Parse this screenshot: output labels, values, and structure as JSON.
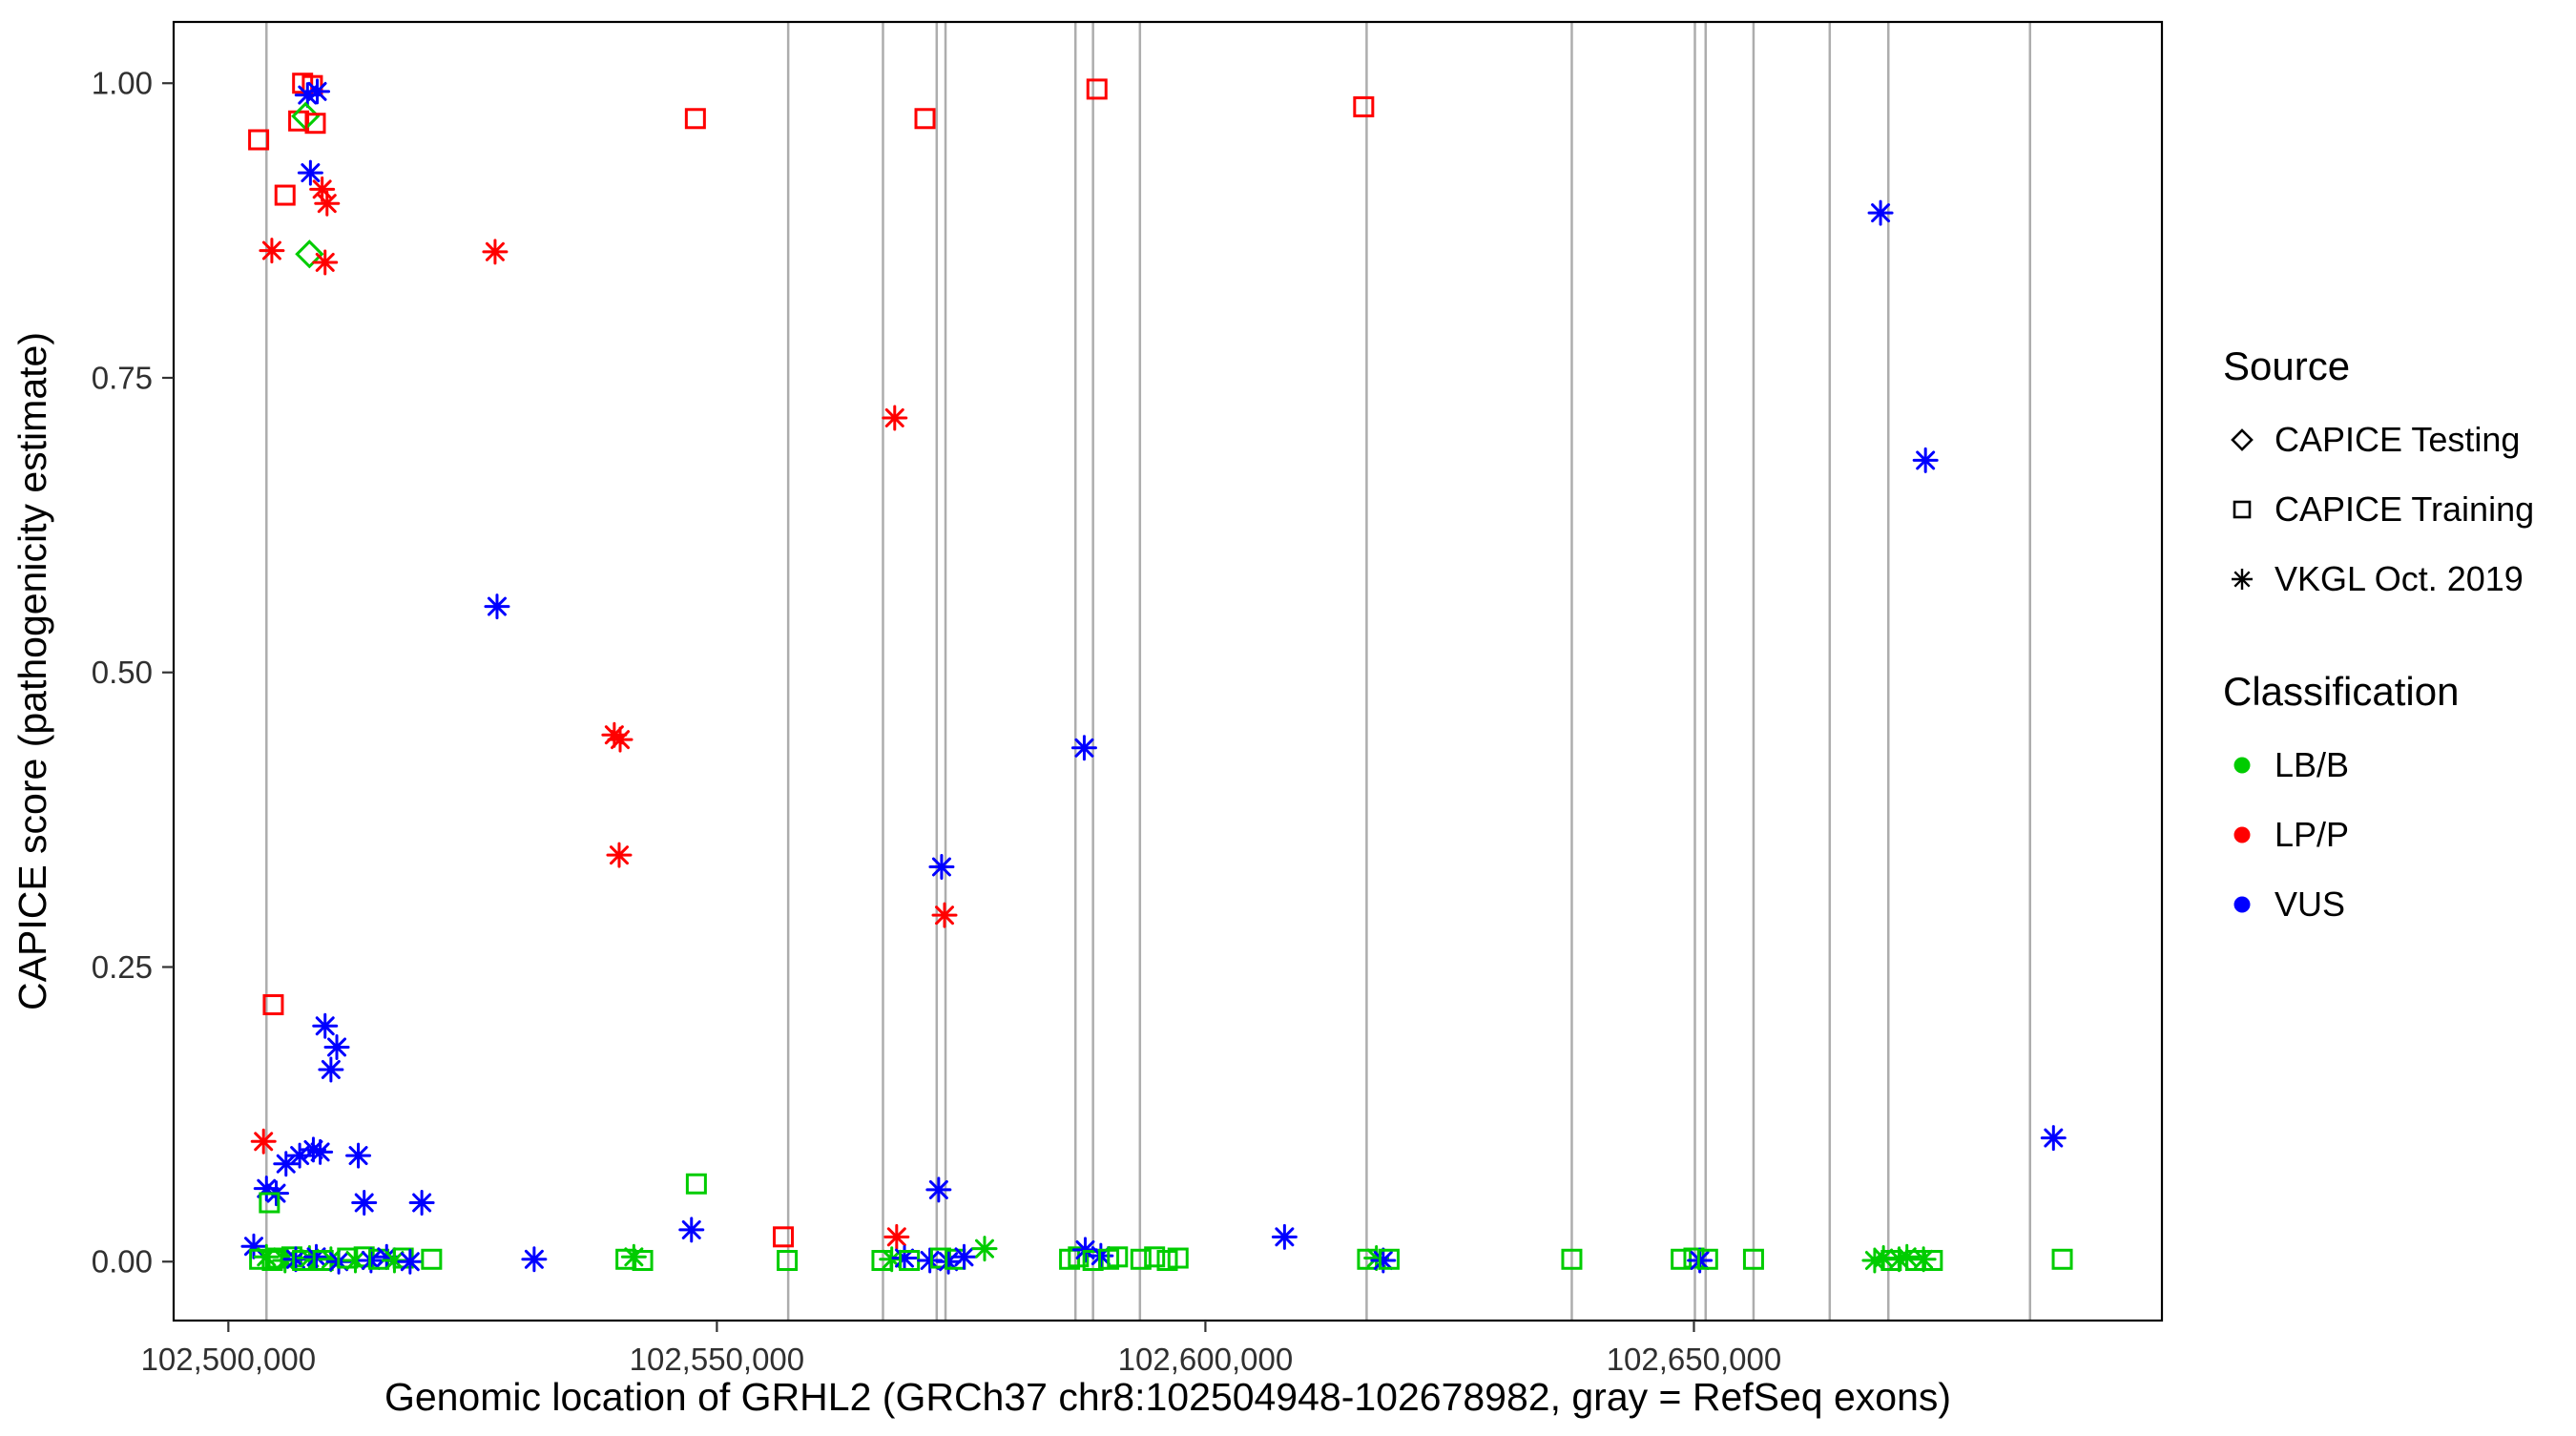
{
  "chart_data": {
    "type": "scatter",
    "title": "",
    "xlabel": "Genomic location of GRHL2 (GRCh37 chr8:102504948-102678982, gray = RefSeq exons)",
    "ylabel": "CAPICE score (pathogenicity estimate)",
    "xlim": [
      102494400,
      102697900
    ],
    "ylim": [
      -0.05,
      1.052
    ],
    "grid": false,
    "x_ticks": [
      {
        "v": 102500000,
        "label": "102,500,000"
      },
      {
        "v": 102550000,
        "label": "102,550,000"
      },
      {
        "v": 102600000,
        "label": "102,600,000"
      },
      {
        "v": 102650000,
        "label": "102,650,000"
      }
    ],
    "y_ticks": [
      {
        "v": 0.0,
        "label": "0.00"
      },
      {
        "v": 0.25,
        "label": "0.25"
      },
      {
        "v": 0.5,
        "label": "0.50"
      },
      {
        "v": 0.75,
        "label": "0.75"
      },
      {
        "v": 1.0,
        "label": "1.00"
      }
    ],
    "exon_color": "#ADADAD",
    "exon_lines": [
      102503900,
      102557300,
      102567000,
      102572500,
      102573400,
      102586700,
      102588500,
      102593300,
      102616500,
      102637500,
      102650100,
      102651200,
      102656100,
      102663900,
      102669900,
      102684400
    ],
    "class_colors": {
      "LB/B": "#00CC00",
      "LP/P": "#FF0000",
      "VUS": "#0000FF"
    },
    "legend": {
      "source_title": "Source",
      "sources": [
        {
          "label": "CAPICE Testing",
          "shape": "diamond"
        },
        {
          "label": "CAPICE Training",
          "shape": "square"
        },
        {
          "label": "VKGL Oct. 2019",
          "shape": "asterisk"
        }
      ],
      "classification_title": "Classification",
      "classifications": [
        {
          "label": "LB/B",
          "color": "#00CC00"
        },
        {
          "label": "LP/P",
          "color": "#FF0000"
        },
        {
          "label": "VUS",
          "color": "#0000FF"
        }
      ]
    },
    "points_format": [
      "x",
      "y",
      "shape",
      "classification"
    ],
    "points": [
      [
        102503100,
        0.952,
        "square",
        "LP/P"
      ],
      [
        102504450,
        0.858,
        "asterisk",
        "LP/P"
      ],
      [
        102505800,
        0.905,
        "square",
        "LP/P"
      ],
      [
        102507200,
        0.968,
        "square",
        "LP/P"
      ],
      [
        102507600,
        1.0,
        "square",
        "LP/P"
      ],
      [
        102508600,
        0.998,
        "square",
        "LP/P"
      ],
      [
        102508100,
        0.99,
        "asterisk",
        "VUS"
      ],
      [
        102509100,
        0.993,
        "asterisk",
        "VUS"
      ],
      [
        102507900,
        0.972,
        "diamond",
        "LB/B"
      ],
      [
        102508900,
        0.966,
        "square",
        "LP/P"
      ],
      [
        102508400,
        0.924,
        "asterisk",
        "VUS"
      ],
      [
        102509600,
        0.91,
        "asterisk",
        "LP/P"
      ],
      [
        102510100,
        0.898,
        "asterisk",
        "LP/P"
      ],
      [
        102508300,
        0.855,
        "diamond",
        "LB/B"
      ],
      [
        102509900,
        0.848,
        "asterisk",
        "LP/P"
      ],
      [
        102504600,
        0.218,
        "square",
        "LP/P"
      ],
      [
        102503600,
        0.102,
        "asterisk",
        "LP/P"
      ],
      [
        102509900,
        0.2,
        "asterisk",
        "VUS"
      ],
      [
        102511100,
        0.182,
        "asterisk",
        "VUS"
      ],
      [
        102510500,
        0.163,
        "asterisk",
        "VUS"
      ],
      [
        102505900,
        0.083,
        "asterisk",
        "VUS"
      ],
      [
        102507300,
        0.09,
        "asterisk",
        "VUS"
      ],
      [
        102508700,
        0.095,
        "asterisk",
        "VUS"
      ],
      [
        102509400,
        0.093,
        "asterisk",
        "VUS"
      ],
      [
        102513300,
        0.09,
        "asterisk",
        "VUS"
      ],
      [
        102503900,
        0.062,
        "asterisk",
        "VUS"
      ],
      [
        102504900,
        0.058,
        "asterisk",
        "VUS"
      ],
      [
        102504200,
        0.05,
        "square",
        "LB/B"
      ],
      [
        102513900,
        0.05,
        "asterisk",
        "VUS"
      ],
      [
        102519800,
        0.05,
        "asterisk",
        "VUS"
      ],
      [
        102502600,
        0.013,
        "asterisk",
        "VUS"
      ],
      [
        102503200,
        0.002,
        "square",
        "LB/B"
      ],
      [
        102503900,
        0.004,
        "asterisk",
        "LB/B"
      ],
      [
        102504500,
        0.001,
        "square",
        "LB/B"
      ],
      [
        102505100,
        0.003,
        "square",
        "LB/B"
      ],
      [
        102505800,
        0.001,
        "asterisk",
        "LB/B"
      ],
      [
        102506500,
        0.004,
        "square",
        "LB/B"
      ],
      [
        102506900,
        0.002,
        "asterisk",
        "VUS"
      ],
      [
        102507600,
        0.001,
        "square",
        "LB/B"
      ],
      [
        102508300,
        0.003,
        "asterisk",
        "LB/B"
      ],
      [
        102509000,
        0.004,
        "asterisk",
        "VUS"
      ],
      [
        102509700,
        0.001,
        "square",
        "LB/B"
      ],
      [
        102510500,
        0.002,
        "asterisk",
        "LB/B"
      ],
      [
        102511300,
        0.0,
        "asterisk",
        "VUS"
      ],
      [
        102512200,
        0.003,
        "square",
        "LB/B"
      ],
      [
        102513000,
        0.001,
        "asterisk",
        "LB/B"
      ],
      [
        102513900,
        0.004,
        "square",
        "LB/B"
      ],
      [
        102514600,
        0.001,
        "asterisk",
        "VUS"
      ],
      [
        102515400,
        0.002,
        "square",
        "LB/B"
      ],
      [
        102516200,
        0.004,
        "asterisk",
        "VUS"
      ],
      [
        102517000,
        0.001,
        "asterisk",
        "LB/B"
      ],
      [
        102517900,
        0.003,
        "square",
        "LB/B"
      ],
      [
        102518600,
        0.0,
        "asterisk",
        "VUS"
      ],
      [
        102520800,
        0.002,
        "square",
        "LB/B"
      ],
      [
        102527300,
        0.857,
        "asterisk",
        "LP/P"
      ],
      [
        102527500,
        0.556,
        "asterisk",
        "VUS"
      ],
      [
        102531300,
        0.002,
        "asterisk",
        "VUS"
      ],
      [
        102539500,
        0.447,
        "asterisk",
        "LP/P"
      ],
      [
        102540100,
        0.443,
        "asterisk",
        "LP/P"
      ],
      [
        102540000,
        0.345,
        "asterisk",
        "LP/P"
      ],
      [
        102540700,
        0.002,
        "square",
        "LB/B"
      ],
      [
        102541500,
        0.004,
        "asterisk",
        "LB/B"
      ],
      [
        102542400,
        0.001,
        "square",
        "LB/B"
      ],
      [
        102547800,
        0.97,
        "square",
        "LP/P"
      ],
      [
        102547900,
        0.066,
        "square",
        "LB/B"
      ],
      [
        102547400,
        0.027,
        "asterisk",
        "VUS"
      ],
      [
        102556800,
        0.021,
        "square",
        "LP/P"
      ],
      [
        102557200,
        0.001,
        "square",
        "LB/B"
      ],
      [
        102568200,
        0.716,
        "asterisk",
        "LP/P"
      ],
      [
        102568400,
        0.021,
        "asterisk",
        "LP/P"
      ],
      [
        102566900,
        0.001,
        "square",
        "LB/B"
      ],
      [
        102567900,
        0.002,
        "asterisk",
        "LB/B"
      ],
      [
        102569200,
        0.003,
        "asterisk",
        "VUS"
      ],
      [
        102569700,
        0.001,
        "square",
        "LB/B"
      ],
      [
        102571300,
        0.97,
        "square",
        "LP/P"
      ],
      [
        102573000,
        0.335,
        "asterisk",
        "VUS"
      ],
      [
        102573300,
        0.294,
        "asterisk",
        "LP/P"
      ],
      [
        102572700,
        0.061,
        "asterisk",
        "VUS"
      ],
      [
        102571800,
        0.001,
        "asterisk",
        "VUS"
      ],
      [
        102572900,
        0.003,
        "square",
        "LB/B"
      ],
      [
        102573700,
        0.0,
        "asterisk",
        "VUS"
      ],
      [
        102574400,
        0.002,
        "square",
        "LB/B"
      ],
      [
        102575300,
        0.004,
        "asterisk",
        "VUS"
      ],
      [
        102577400,
        0.011,
        "asterisk",
        "LB/B"
      ],
      [
        102588900,
        0.995,
        "square",
        "LP/P"
      ],
      [
        102587600,
        0.436,
        "asterisk",
        "VUS"
      ],
      [
        102586100,
        0.002,
        "square",
        "LB/B"
      ],
      [
        102587000,
        0.004,
        "square",
        "LB/B"
      ],
      [
        102587700,
        0.01,
        "asterisk",
        "VUS"
      ],
      [
        102588500,
        0.001,
        "square",
        "LB/B"
      ],
      [
        102589300,
        0.005,
        "asterisk",
        "VUS"
      ],
      [
        102590100,
        0.002,
        "square",
        "LB/B"
      ],
      [
        102591000,
        0.004,
        "square",
        "LB/B"
      ],
      [
        102593400,
        0.002,
        "square",
        "LB/B"
      ],
      [
        102594800,
        0.004,
        "square",
        "LB/B"
      ],
      [
        102596100,
        0.001,
        "square",
        "LB/B"
      ],
      [
        102597200,
        0.003,
        "square",
        "LB/B"
      ],
      [
        102608100,
        0.021,
        "asterisk",
        "VUS"
      ],
      [
        102616200,
        0.98,
        "square",
        "LP/P"
      ],
      [
        102616600,
        0.002,
        "square",
        "LB/B"
      ],
      [
        102617500,
        0.003,
        "asterisk",
        "LB/B"
      ],
      [
        102618200,
        0.001,
        "asterisk",
        "VUS"
      ],
      [
        102618800,
        0.002,
        "square",
        "LB/B"
      ],
      [
        102637500,
        0.002,
        "square",
        "LB/B"
      ],
      [
        102648700,
        0.002,
        "square",
        "LB/B"
      ],
      [
        102650000,
        0.003,
        "square",
        "LB/B"
      ],
      [
        102650600,
        0.001,
        "asterisk",
        "VUS"
      ],
      [
        102651400,
        0.002,
        "square",
        "LB/B"
      ],
      [
        102656100,
        0.002,
        "square",
        "LB/B"
      ],
      [
        102669100,
        0.89,
        "asterisk",
        "VUS"
      ],
      [
        102673700,
        0.68,
        "asterisk",
        "VUS"
      ],
      [
        102668500,
        0.001,
        "asterisk",
        "LB/B"
      ],
      [
        102669400,
        0.003,
        "asterisk",
        "LB/B"
      ],
      [
        102670200,
        0.001,
        "square",
        "LB/B"
      ],
      [
        102671000,
        0.002,
        "asterisk",
        "LB/B"
      ],
      [
        102671800,
        0.004,
        "asterisk",
        "LB/B"
      ],
      [
        102672700,
        0.001,
        "square",
        "LB/B"
      ],
      [
        102673500,
        0.002,
        "asterisk",
        "LB/B"
      ],
      [
        102674400,
        0.001,
        "square",
        "LB/B"
      ],
      [
        102686800,
        0.105,
        "asterisk",
        "VUS"
      ],
      [
        102687700,
        0.002,
        "square",
        "LB/B"
      ]
    ]
  }
}
